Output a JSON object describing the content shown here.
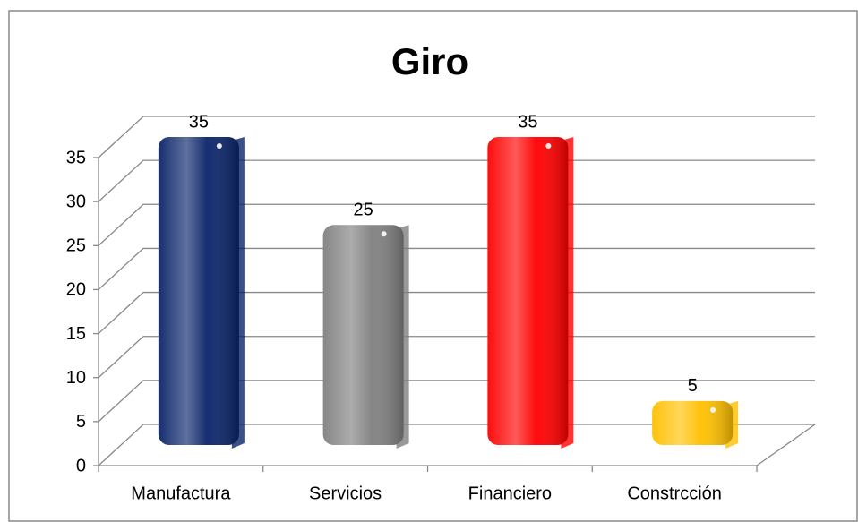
{
  "chart_data": {
    "type": "bar",
    "title": "Giro",
    "categories": [
      "Manufactura",
      "Servicios",
      "Financiero",
      "Constrcción"
    ],
    "values": [
      35,
      25,
      35,
      5
    ],
    "colors": [
      "#0a2469",
      "#808080",
      "#ff0000",
      "#ffc000"
    ],
    "ylim": [
      0,
      35
    ],
    "yticks": [
      0,
      5,
      10,
      15,
      20,
      25,
      30,
      35
    ],
    "grid": true
  }
}
